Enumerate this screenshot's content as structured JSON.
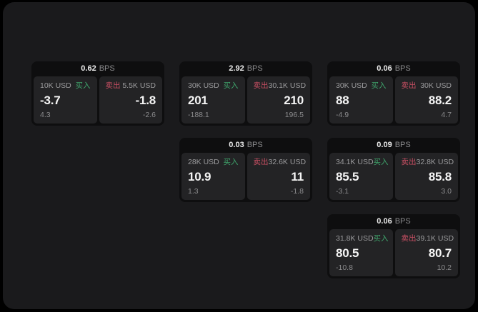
{
  "labels": {
    "bps_unit": "BPS",
    "buy": "买入",
    "sell": "卖出"
  },
  "colors": {
    "background": "#000000",
    "panel": "#1a1a1c",
    "card": "#0e0e0f",
    "cell": "#232325",
    "buy_green": "#3fa56c",
    "sell_red": "#c84f63"
  },
  "cards": [
    {
      "bps": "0.62",
      "buy": {
        "size": "10K USD",
        "price": "-3.7",
        "change": "4.3"
      },
      "sell": {
        "size": "5.5K USD",
        "price": "-1.8",
        "change": "-2.6"
      }
    },
    {
      "bps": "2.92",
      "buy": {
        "size": "30K USD",
        "price": "201",
        "change": "-188.1"
      },
      "sell": {
        "size": "30.1K USD",
        "price": "210",
        "change": "196.5"
      }
    },
    {
      "bps": "0.06",
      "buy": {
        "size": "30K USD",
        "price": "88",
        "change": "-4.9"
      },
      "sell": {
        "size": "30K USD",
        "price": "88.2",
        "change": "4.7"
      }
    },
    {
      "bps": "0.03",
      "buy": {
        "size": "28K USD",
        "price": "10.9",
        "change": "1.3"
      },
      "sell": {
        "size": "32.6K USD",
        "price": "11",
        "change": "-1.8"
      }
    },
    {
      "bps": "0.09",
      "buy": {
        "size": "34.1K USD",
        "price": "85.5",
        "change": "-3.1"
      },
      "sell": {
        "size": "32.8K USD",
        "price": "85.8",
        "change": "3.0"
      }
    },
    {
      "bps": "0.06",
      "buy": {
        "size": "31.8K USD",
        "price": "80.5",
        "change": "-10.8"
      },
      "sell": {
        "size": "39.1K USD",
        "price": "80.7",
        "change": "10.2"
      }
    }
  ]
}
